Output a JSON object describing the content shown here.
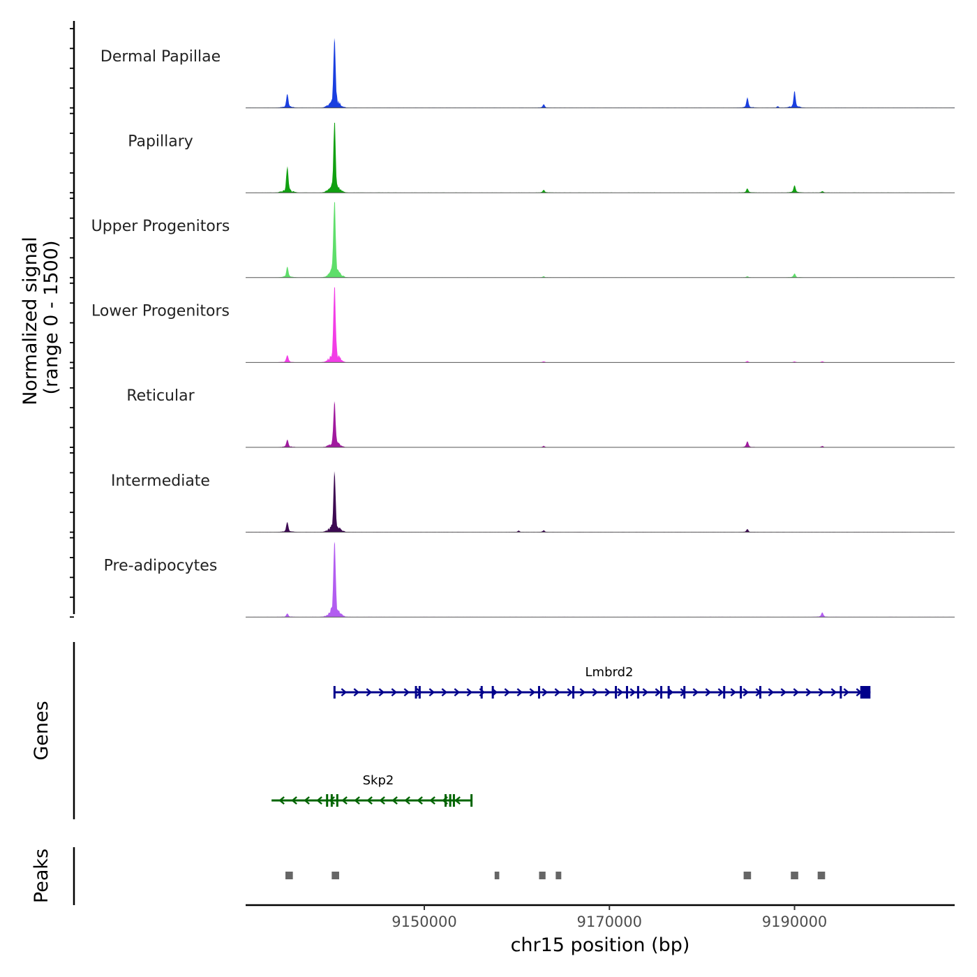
{
  "chart_data": {
    "type": "area",
    "title": "",
    "xlabel": "chr15 position (bp)",
    "ylabel": "Normalized signal",
    "ylabel_sub": "(range 0 - 1500)",
    "ylim": [
      0,
      1500
    ],
    "xlim": [
      9130700,
      9207300
    ],
    "x_ticks": [
      9150000,
      9170000,
      9190000
    ],
    "x_tick_labels": [
      "9150000",
      "9170000",
      "9190000"
    ],
    "tracks": [
      {
        "name": "Dermal Papillae",
        "color": "#1a3fe0",
        "peaks": [
          [
            9135200,
            280
          ],
          [
            9140300,
            1450
          ],
          [
            9162900,
            70
          ],
          [
            9184900,
            200
          ],
          [
            9188200,
            30
          ],
          [
            9190000,
            330
          ]
        ]
      },
      {
        "name": "Papillary",
        "color": "#11a011",
        "peaks": [
          [
            9135200,
            520
          ],
          [
            9140300,
            1450
          ],
          [
            9162900,
            55
          ],
          [
            9184900,
            80
          ],
          [
            9190000,
            150
          ],
          [
            9193000,
            30
          ]
        ]
      },
      {
        "name": "Upper Progenitors",
        "color": "#5ede6a",
        "peaks": [
          [
            9135200,
            220
          ],
          [
            9140300,
            1630
          ],
          [
            9162900,
            25
          ],
          [
            9184900,
            25
          ],
          [
            9190000,
            80
          ]
        ]
      },
      {
        "name": "Lower Progenitors",
        "color": "#f23de6",
        "peaks": [
          [
            9135200,
            140
          ],
          [
            9140300,
            1560
          ],
          [
            9162900,
            20
          ],
          [
            9184900,
            25
          ],
          [
            9190000,
            20
          ],
          [
            9193000,
            20
          ]
        ]
      },
      {
        "name": "Reticular",
        "color": "#a01a9e",
        "peaks": [
          [
            9135200,
            150
          ],
          [
            9140300,
            900
          ],
          [
            9162900,
            25
          ],
          [
            9184900,
            120
          ],
          [
            9193000,
            25
          ]
        ]
      },
      {
        "name": "Intermediate",
        "color": "#3d0a52",
        "peaks": [
          [
            9135200,
            200
          ],
          [
            9140300,
            1230
          ],
          [
            9160200,
            30
          ],
          [
            9162900,
            35
          ],
          [
            9184900,
            60
          ]
        ]
      },
      {
        "name": "Pre-adipocytes",
        "color": "#b25df0",
        "peaks": [
          [
            9135200,
            70
          ],
          [
            9140300,
            1550
          ],
          [
            9193000,
            90
          ]
        ]
      }
    ],
    "genes_label": "Genes",
    "genes": [
      {
        "name": "Lmbrd2",
        "strand": "+",
        "color": "#00008b",
        "start": 9140300,
        "end": 9198200,
        "exons": [
          9140300,
          9149100,
          9149500,
          9156200,
          9157400,
          9162400,
          9166100,
          9170700,
          9171900,
          9173100,
          9175600,
          9176400,
          9178100,
          9182400,
          9184200,
          9186300,
          9195000
        ],
        "utr": [
          9197100,
          9198200
        ]
      },
      {
        "name": "Skp2",
        "strand": "-",
        "color": "#006400",
        "start": 9133500,
        "end": 9155100,
        "exons": [
          9139500,
          9140000,
          9140600,
          9152300,
          9152800,
          9153200,
          9155100
        ]
      }
    ],
    "peaks_label": "Peaks",
    "peak_regions": [
      [
        9135000,
        9135800
      ],
      [
        9140000,
        9140800
      ],
      [
        9157600,
        9158100
      ],
      [
        9162400,
        9163100
      ],
      [
        9164200,
        9164800
      ],
      [
        9184500,
        9185300
      ],
      [
        9189600,
        9190400
      ],
      [
        9192500,
        9193300
      ]
    ]
  }
}
